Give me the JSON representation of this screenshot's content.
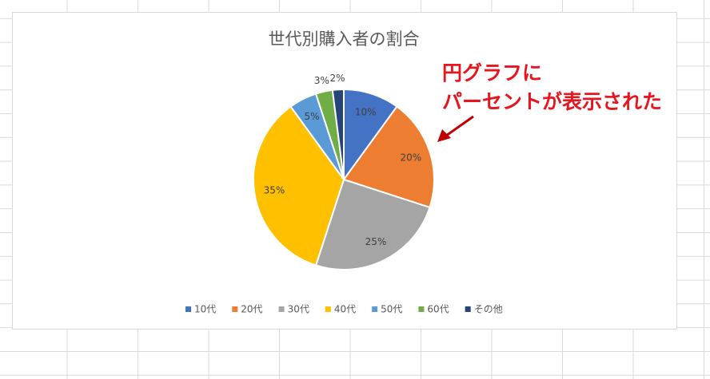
{
  "chart_data": {
    "type": "pie",
    "title": "世代別購入者の割合",
    "categories": [
      "10代",
      "20代",
      "30代",
      "40代",
      "50代",
      "60代",
      "その他"
    ],
    "values": [
      10,
      20,
      25,
      35,
      5,
      3,
      2
    ],
    "value_labels": [
      "10%",
      "20%",
      "25%",
      "35%",
      "5%",
      "3%",
      "2%"
    ],
    "colors": [
      "#4472c4",
      "#ed7d31",
      "#a5a5a5",
      "#ffc000",
      "#5b9bd5",
      "#70ad47",
      "#264478"
    ],
    "legend": "bottom",
    "annotation": [
      "円グラフに",
      "パーセントが表示された"
    ]
  }
}
